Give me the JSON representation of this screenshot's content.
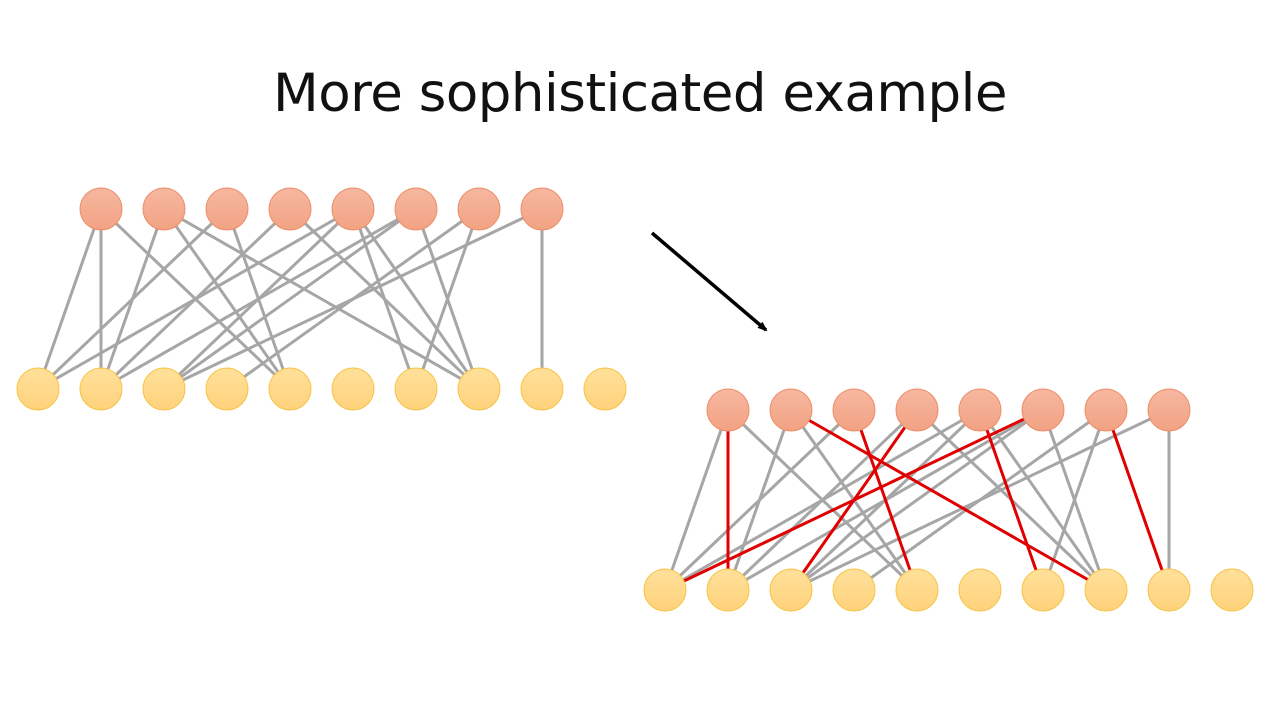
{
  "slide": {
    "title": "More sophisticated example"
  },
  "colors": {
    "top_node_fill": "#f5ad92",
    "top_node_stroke": "#ed8d68",
    "bottom_node_fill": "#ffd98c",
    "bottom_node_stroke": "#f5c446",
    "edge": "#a6a6a6",
    "matched_edge": "#e00000",
    "arrow": "#000000"
  },
  "graphs": [
    {
      "id": "original",
      "top_count": 8,
      "bottom_count": 10,
      "edges": [
        [
          0,
          0
        ],
        [
          0,
          1
        ],
        [
          0,
          4
        ],
        [
          1,
          1
        ],
        [
          1,
          4
        ],
        [
          1,
          7
        ],
        [
          2,
          0
        ],
        [
          2,
          4
        ],
        [
          3,
          1
        ],
        [
          3,
          7
        ],
        [
          4,
          0
        ],
        [
          4,
          2
        ],
        [
          4,
          6
        ],
        [
          4,
          7
        ],
        [
          5,
          1
        ],
        [
          5,
          2
        ],
        [
          5,
          7
        ],
        [
          6,
          3
        ],
        [
          6,
          6
        ],
        [
          7,
          2
        ],
        [
          7,
          8
        ]
      ],
      "matched_edges": []
    },
    {
      "id": "matched",
      "top_count": 8,
      "bottom_count": 10,
      "edges": [
        [
          0,
          0
        ],
        [
          0,
          1
        ],
        [
          0,
          4
        ],
        [
          1,
          1
        ],
        [
          1,
          4
        ],
        [
          1,
          7
        ],
        [
          2,
          0
        ],
        [
          2,
          4
        ],
        [
          3,
          1
        ],
        [
          3,
          7
        ],
        [
          4,
          0
        ],
        [
          4,
          2
        ],
        [
          4,
          6
        ],
        [
          4,
          7
        ],
        [
          5,
          1
        ],
        [
          5,
          2
        ],
        [
          5,
          7
        ],
        [
          6,
          3
        ],
        [
          6,
          6
        ],
        [
          7,
          2
        ],
        [
          7,
          8
        ]
      ],
      "matched_edges": [
        [
          0,
          1
        ],
        [
          1,
          7
        ],
        [
          2,
          4
        ],
        [
          3,
          2
        ],
        [
          4,
          6
        ],
        [
          5,
          0
        ],
        [
          6,
          8
        ]
      ]
    }
  ]
}
